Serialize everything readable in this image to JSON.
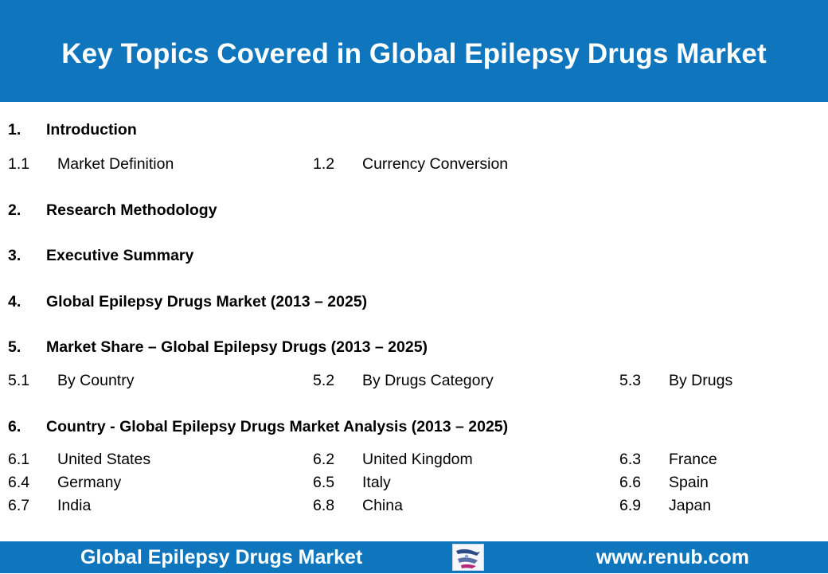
{
  "header": {
    "title": "Key Topics Covered in Global Epilepsy Drugs Market"
  },
  "sections": [
    {
      "num": "1.",
      "title": "Introduction",
      "items": [
        {
          "num": "1.1",
          "label": "Market Definition"
        },
        {
          "num": "1.2",
          "label": "Currency Conversion"
        }
      ]
    },
    {
      "num": "2.",
      "title": "Research Methodology"
    },
    {
      "num": "3.",
      "title": "Executive Summary"
    },
    {
      "num": "4.",
      "title": "Global Epilepsy Drugs Market (2013 – 2025)"
    },
    {
      "num": "5.",
      "title": "Market Share – Global Epilepsy Drugs (2013 – 2025)",
      "items": [
        {
          "num": "5.1",
          "label": "By Country"
        },
        {
          "num": "5.2",
          "label": "By Drugs Category"
        },
        {
          "num": "5.3",
          "label": "By Drugs"
        }
      ]
    },
    {
      "num": "6.",
      "title": "Country - Global Epilepsy Drugs Market Analysis (2013 – 2025)",
      "items": [
        {
          "num": "6.1",
          "label": "United States"
        },
        {
          "num": "6.2",
          "label": "United Kingdom"
        },
        {
          "num": "6.3",
          "label": "France"
        },
        {
          "num": "6.4",
          "label": "Germany"
        },
        {
          "num": "6.5",
          "label": "Italy"
        },
        {
          "num": "6.6",
          "label": "Spain"
        },
        {
          "num": "6.7",
          "label": "India"
        },
        {
          "num": "6.8",
          "label": "China"
        },
        {
          "num": "6.9",
          "label": "Japan"
        }
      ]
    }
  ],
  "footer": {
    "title": "Global Epilepsy Drugs Market",
    "url": "www.renub.com"
  },
  "colors": {
    "brand_blue": "#0f75bd",
    "text": "#000000",
    "header_text": "#ffffff"
  }
}
